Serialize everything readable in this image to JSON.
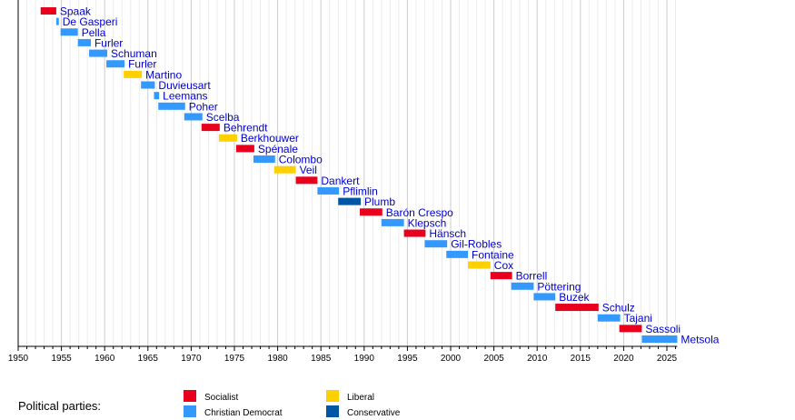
{
  "chart_data": {
    "type": "bar",
    "orientation": "horizontal-timeline",
    "xlim": [
      1950,
      2026.2
    ],
    "xticks": [
      1950,
      1955,
      1960,
      1965,
      1970,
      1975,
      1980,
      1985,
      1990,
      1995,
      2000,
      2005,
      2010,
      2015,
      2020,
      2025
    ],
    "grid": true,
    "colors": {
      "Socialist": "#E8001C",
      "Christian Democrat": "#3399FF",
      "Liberal": "#FFD000",
      "Conservative": "#0055A4"
    },
    "label_color": "#0000CC",
    "items": [
      {
        "name": "Spaak",
        "start": 1952.6,
        "end": 1954.4,
        "party": "Socialist"
      },
      {
        "name": "De Gasperi",
        "start": 1954.4,
        "end": 1954.7,
        "party": "Christian Democrat"
      },
      {
        "name": "Pella",
        "start": 1954.9,
        "end": 1956.9,
        "party": "Christian Democrat"
      },
      {
        "name": "Furler",
        "start": 1956.9,
        "end": 1958.4,
        "party": "Christian Democrat"
      },
      {
        "name": "Schuman",
        "start": 1958.2,
        "end": 1960.3,
        "party": "Christian Democrat"
      },
      {
        "name": "Furler",
        "start": 1960.2,
        "end": 1962.3,
        "party": "Christian Democrat"
      },
      {
        "name": "Martino",
        "start": 1962.2,
        "end": 1964.3,
        "party": "Liberal"
      },
      {
        "name": "Duvieusart",
        "start": 1964.2,
        "end": 1965.8,
        "party": "Christian Democrat"
      },
      {
        "name": "Leemans",
        "start": 1965.7,
        "end": 1966.3,
        "party": "Christian Democrat"
      },
      {
        "name": "Poher",
        "start": 1966.2,
        "end": 1969.3,
        "party": "Christian Democrat"
      },
      {
        "name": "Scelba",
        "start": 1969.2,
        "end": 1971.3,
        "party": "Christian Democrat"
      },
      {
        "name": "Behrendt",
        "start": 1971.2,
        "end": 1973.3,
        "party": "Socialist"
      },
      {
        "name": "Berkhouwer",
        "start": 1973.2,
        "end": 1975.3,
        "party": "Liberal"
      },
      {
        "name": "Spénale",
        "start": 1975.2,
        "end": 1977.3,
        "party": "Socialist"
      },
      {
        "name": "Colombo",
        "start": 1977.2,
        "end": 1979.7,
        "party": "Christian Democrat"
      },
      {
        "name": "Veil",
        "start": 1979.6,
        "end": 1982.1,
        "party": "Liberal"
      },
      {
        "name": "Dankert",
        "start": 1982.1,
        "end": 1984.6,
        "party": "Socialist"
      },
      {
        "name": "Pflimlin",
        "start": 1984.6,
        "end": 1987.1,
        "party": "Christian Democrat"
      },
      {
        "name": "Plumb",
        "start": 1987.0,
        "end": 1989.6,
        "party": "Conservative"
      },
      {
        "name": "Barón Crespo",
        "start": 1989.5,
        "end": 1992.1,
        "party": "Socialist"
      },
      {
        "name": "Klepsch",
        "start": 1992.0,
        "end": 1994.6,
        "party": "Christian Democrat"
      },
      {
        "name": "Hänsch",
        "start": 1994.6,
        "end": 1997.1,
        "party": "Socialist"
      },
      {
        "name": "Gil-Robles",
        "start": 1997.0,
        "end": 1999.6,
        "party": "Christian Democrat"
      },
      {
        "name": "Fontaine",
        "start": 1999.5,
        "end": 2002.0,
        "party": "Christian Democrat"
      },
      {
        "name": "Cox",
        "start": 2002.0,
        "end": 2004.6,
        "party": "Liberal"
      },
      {
        "name": "Borrell",
        "start": 2004.6,
        "end": 2007.1,
        "party": "Socialist"
      },
      {
        "name": "Pöttering",
        "start": 2007.0,
        "end": 2009.6,
        "party": "Christian Democrat"
      },
      {
        "name": "Buzek",
        "start": 2009.6,
        "end": 2012.1,
        "party": "Christian Democrat"
      },
      {
        "name": "Schulz",
        "start": 2012.1,
        "end": 2017.1,
        "party": "Socialist"
      },
      {
        "name": "Tajani",
        "start": 2017.0,
        "end": 2019.6,
        "party": "Christian Democrat"
      },
      {
        "name": "Sassoli",
        "start": 2019.5,
        "end": 2022.1,
        "party": "Socialist"
      },
      {
        "name": "Metsola",
        "start": 2022.1,
        "end": 2026.2,
        "party": "Christian Democrat"
      }
    ],
    "legend": {
      "title": "Political parties:",
      "placement": "bottom",
      "entries": [
        "Socialist",
        "Christian Democrat",
        "Liberal",
        "Conservative"
      ]
    }
  }
}
